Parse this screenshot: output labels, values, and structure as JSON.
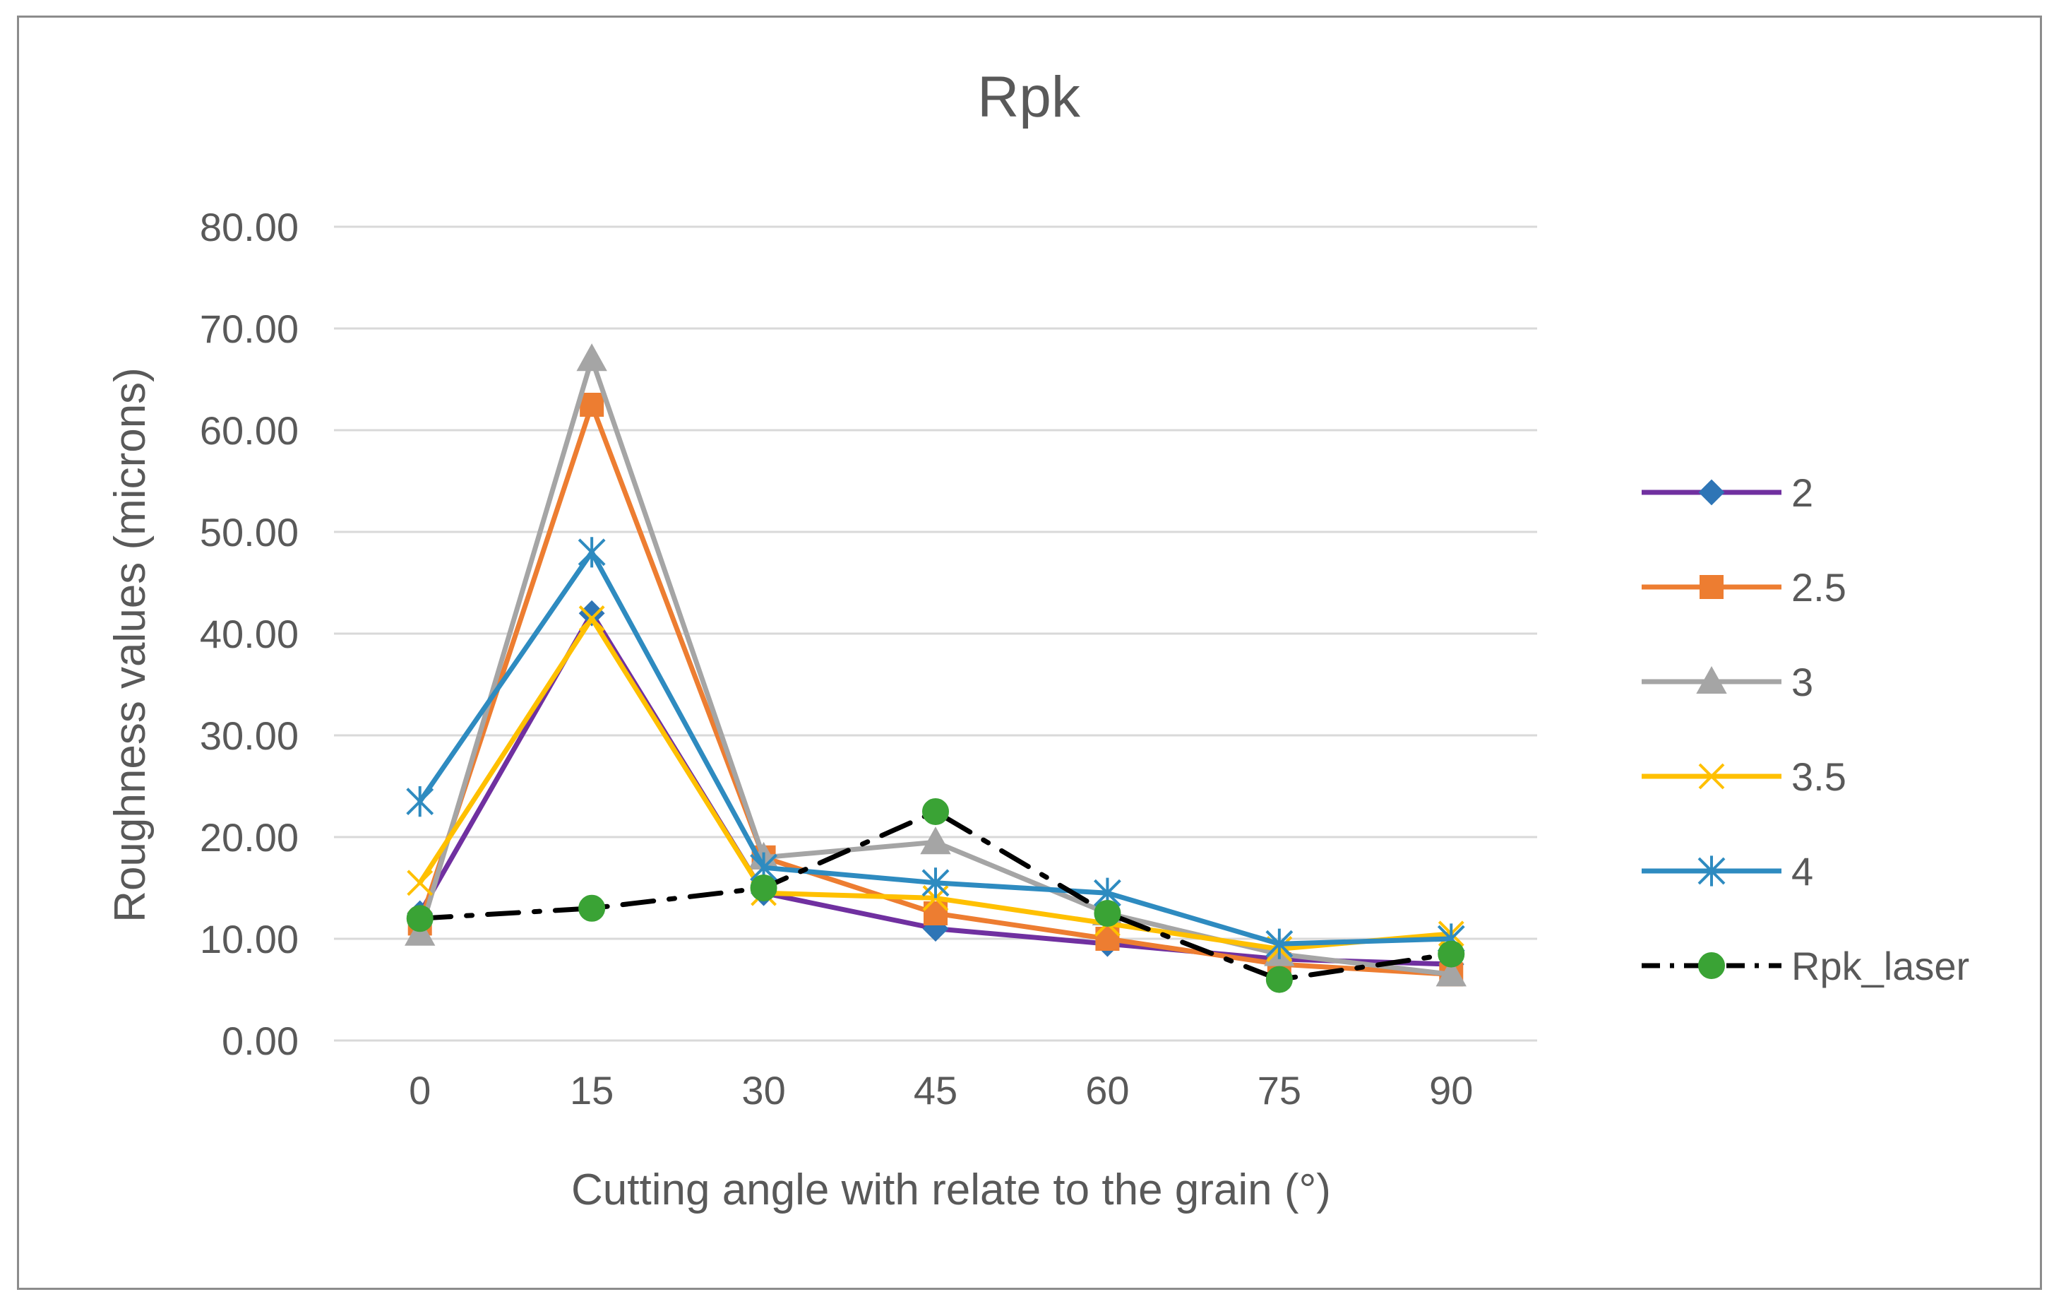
{
  "chart_data": {
    "type": "line",
    "title": "Rpk",
    "xlabel": "Cutting angle with relate to the grain (°)",
    "ylabel": "Roughness values (microns)",
    "categories": [
      "0",
      "15",
      "30",
      "45",
      "60",
      "75",
      "90"
    ],
    "ylim": [
      0,
      80
    ],
    "yticks": [
      "0.00",
      "10.00",
      "20.00",
      "30.00",
      "40.00",
      "50.00",
      "60.00",
      "70.00",
      "80.00"
    ],
    "grid": true,
    "legend_position": "right",
    "series": [
      {
        "name": "2",
        "values": [
          12.5,
          42.0,
          14.5,
          11.0,
          9.5,
          8.0,
          7.5
        ],
        "color": "#7030a0",
        "marker": "diamond",
        "marker_color": "#2e75b6",
        "dash": "solid"
      },
      {
        "name": "2.5",
        "values": [
          11.5,
          62.5,
          18.0,
          12.5,
          10.0,
          7.5,
          6.5
        ],
        "color": "#ed7d31",
        "marker": "square",
        "marker_color": "#ed7d31",
        "dash": "solid"
      },
      {
        "name": "3",
        "values": [
          10.5,
          67.0,
          18.0,
          19.5,
          12.5,
          8.5,
          6.5
        ],
        "color": "#a5a5a5",
        "marker": "triangle",
        "marker_color": "#a5a5a5",
        "dash": "solid"
      },
      {
        "name": "3.5",
        "values": [
          15.5,
          41.5,
          14.5,
          14.0,
          11.5,
          9.0,
          10.5
        ],
        "color": "#ffc000",
        "marker": "x",
        "marker_color": "#ffc000",
        "dash": "solid"
      },
      {
        "name": "4",
        "values": [
          23.5,
          48.0,
          17.0,
          15.5,
          14.5,
          9.5,
          10.0
        ],
        "color": "#2e8bc0",
        "marker": "star",
        "marker_color": "#2e8bc0",
        "dash": "solid"
      },
      {
        "name": "Rpk_laser",
        "values": [
          12.0,
          13.0,
          15.0,
          22.5,
          12.5,
          6.0,
          8.5
        ],
        "color": "#000000",
        "marker": "circle",
        "marker_color": "#3aa335",
        "dash": "dashdot"
      }
    ]
  }
}
